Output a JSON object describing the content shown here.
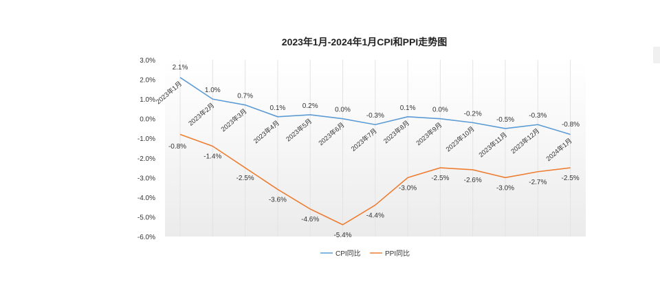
{
  "chart_data": {
    "type": "line",
    "title": "2023年1月-2024年1月CPI和PPI走势图",
    "categories": [
      "2023年1月",
      "2023年2月",
      "2023年3月",
      "2023年4月",
      "2023年5月",
      "2023年6月",
      "2023年7月",
      "2023年8月",
      "2023年9月",
      "2023年10月",
      "2023年11月",
      "2023年12月",
      "2024年1月"
    ],
    "series": [
      {
        "name": "CPI同比",
        "color": "#5b9bd5",
        "values": [
          2.1,
          1.0,
          0.7,
          0.1,
          0.2,
          0.0,
          -0.3,
          0.1,
          0.0,
          -0.2,
          -0.5,
          -0.3,
          -0.8
        ],
        "labels": [
          "2.1%",
          "1.0%",
          "0.7%",
          "0.1%",
          "0.2%",
          "0.0%",
          "-0.3%",
          "0.1%",
          "0.0%",
          "-0.2%",
          "-0.5%",
          "-0.3%",
          "-0.8%"
        ]
      },
      {
        "name": "PPI同比",
        "color": "#ed7d31",
        "values": [
          -0.8,
          -1.4,
          -2.5,
          -3.6,
          -4.6,
          -5.4,
          -4.4,
          -3.0,
          -2.5,
          -2.6,
          -3.0,
          -2.7,
          -2.5
        ],
        "labels": [
          "-0.8%",
          "-1.4%",
          "-2.5%",
          "-3.6%",
          "-4.6%",
          "-5.4%",
          "-4.4%",
          "-3.0%",
          "-2.5%",
          "-2.6%",
          "-3.0%",
          "-2.7%",
          "-2.5%"
        ]
      }
    ],
    "yticks": [
      "3.0%",
      "2.0%",
      "1.0%",
      "0.0%",
      "-1.0%",
      "-2.0%",
      "-3.0%",
      "-4.0%",
      "-5.0%",
      "-6.0%"
    ],
    "ylim": [
      -6,
      3
    ],
    "legend_position": "bottom",
    "grid": "vertical"
  }
}
